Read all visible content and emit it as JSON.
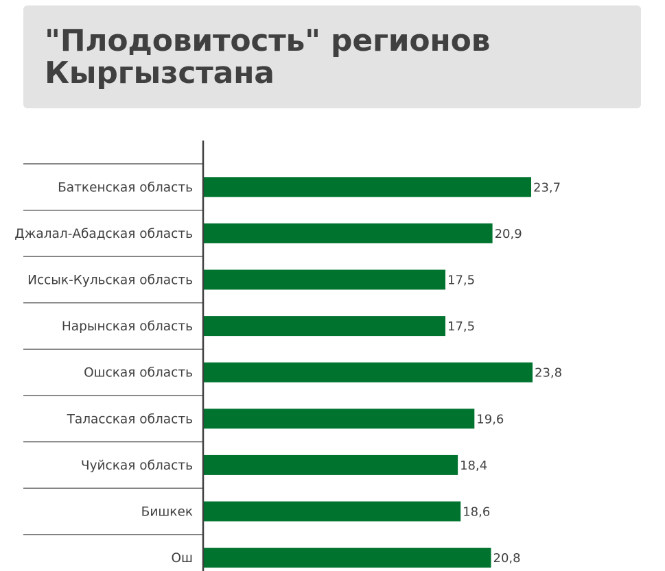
{
  "header": {
    "title": "\"Плодовитость\" регионов Кыргызстана"
  },
  "colors": {
    "bar": "#00732f",
    "header_bg": "#e3e3e3",
    "text": "#404040",
    "axis": "#404040"
  },
  "chart_data": {
    "type": "bar",
    "orientation": "horizontal",
    "title": "\"Плодовитость\" регионов Кыргызстана",
    "categories": [
      "Баткенская область",
      "Джалал-Абадская область",
      "Иссык-Кульская область",
      "Нарынская область",
      "Ошская область",
      "Таласская область",
      "Чуйская область",
      "Бишкек",
      "Ош"
    ],
    "values": [
      23.7,
      20.9,
      17.5,
      17.5,
      23.8,
      19.6,
      18.4,
      18.6,
      20.8
    ],
    "value_labels": [
      "23,7",
      "20,9",
      "17,5",
      "17,5",
      "23,8",
      "19,6",
      "18,4",
      "18,6",
      "20,8"
    ],
    "xlim": [
      0,
      30
    ],
    "grid": false,
    "legend": "none"
  }
}
